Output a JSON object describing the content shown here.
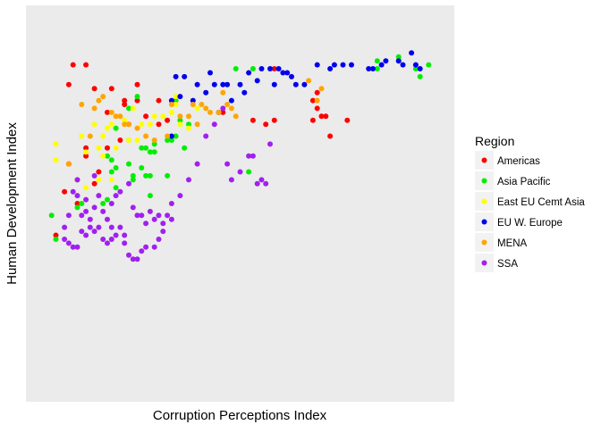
{
  "chart_data": {
    "type": "scatter",
    "title": "",
    "xlabel": "Corruption Perceptions Index",
    "ylabel": "Human Development Index",
    "xlim": [
      0,
      100
    ],
    "ylim": [
      0,
      100
    ],
    "x_ticks_visible": false,
    "y_ticks_visible": false,
    "grid": false,
    "legend": {
      "title": "Region",
      "placement": "right"
    },
    "series": [
      {
        "name": "Americas",
        "color": "#FF0000",
        "points": [
          [
            11,
            85
          ],
          [
            14,
            85
          ],
          [
            10,
            80
          ],
          [
            16,
            79
          ],
          [
            20,
            79
          ],
          [
            23,
            75
          ],
          [
            23,
            76
          ],
          [
            26,
            76
          ],
          [
            26,
            80
          ],
          [
            31,
            76
          ],
          [
            31,
            70
          ],
          [
            28,
            72
          ],
          [
            19,
            73
          ],
          [
            24,
            70
          ],
          [
            22,
            66
          ],
          [
            19,
            64
          ],
          [
            14,
            64
          ],
          [
            14,
            62
          ],
          [
            10,
            60
          ],
          [
            17,
            58
          ],
          [
            16,
            55
          ],
          [
            9,
            53
          ],
          [
            12,
            50
          ],
          [
            7,
            42
          ],
          [
            46,
            73
          ],
          [
            53,
            71
          ],
          [
            56,
            70
          ],
          [
            67,
            71
          ],
          [
            68,
            74
          ],
          [
            68,
            78
          ],
          [
            70,
            72
          ],
          [
            67,
            76
          ],
          [
            71,
            67
          ],
          [
            69,
            72
          ],
          [
            75,
            71
          ],
          [
            58,
            71
          ],
          [
            58,
            84
          ],
          [
            33,
            71
          ]
        ]
      },
      {
        "name": "Asia Pacific",
        "color": "#00EE00",
        "points": [
          [
            49,
            84
          ],
          [
            53,
            84
          ],
          [
            6,
            47
          ],
          [
            7,
            41
          ],
          [
            12,
            49
          ],
          [
            13,
            50
          ],
          [
            18,
            50
          ],
          [
            19,
            51
          ],
          [
            21,
            54
          ],
          [
            21,
            59
          ],
          [
            24,
            60
          ],
          [
            25,
            57
          ],
          [
            28,
            57
          ],
          [
            29,
            63
          ],
          [
            30,
            65
          ],
          [
            33,
            66
          ],
          [
            35,
            67
          ],
          [
            37,
            64
          ],
          [
            38,
            70
          ],
          [
            35,
            76
          ],
          [
            29,
            57
          ],
          [
            33,
            57
          ],
          [
            21,
            69
          ],
          [
            19,
            62
          ],
          [
            20,
            61
          ],
          [
            24,
            74
          ],
          [
            26,
            77
          ],
          [
            27,
            64
          ],
          [
            28,
            64
          ],
          [
            30,
            63
          ],
          [
            34,
            66
          ],
          [
            25,
            56
          ],
          [
            27,
            59
          ],
          [
            20,
            58
          ],
          [
            52,
            58
          ],
          [
            82,
            84
          ],
          [
            82,
            86
          ],
          [
            87,
            86
          ],
          [
            87,
            87
          ],
          [
            91,
            84
          ],
          [
            92,
            82
          ],
          [
            94,
            85
          ],
          [
            29,
            52
          ],
          [
            24,
            66
          ],
          [
            36,
            71
          ]
        ]
      },
      {
        "name": "East EU Cemt Asia",
        "color": "#FFFF00",
        "points": [
          [
            7,
            65
          ],
          [
            7,
            61
          ],
          [
            13,
            67
          ],
          [
            14,
            63
          ],
          [
            16,
            70
          ],
          [
            17,
            64
          ],
          [
            18,
            67
          ],
          [
            19,
            69
          ],
          [
            20,
            70
          ],
          [
            21,
            72
          ],
          [
            23,
            71
          ],
          [
            26,
            66
          ],
          [
            27,
            70
          ],
          [
            29,
            70
          ],
          [
            32,
            72
          ],
          [
            34,
            73
          ],
          [
            35,
            75
          ],
          [
            36,
            70
          ],
          [
            38,
            69
          ],
          [
            39,
            76
          ],
          [
            40,
            74
          ],
          [
            14,
            54
          ],
          [
            17,
            56
          ],
          [
            20,
            56
          ],
          [
            18,
            62
          ],
          [
            21,
            64
          ],
          [
            24,
            66
          ],
          [
            25,
            74
          ],
          [
            30,
            72
          ],
          [
            35,
            77
          ]
        ]
      },
      {
        "name": "EU W. Europe",
        "color": "#0000EE",
        "points": [
          [
            34,
            76
          ],
          [
            36,
            77
          ],
          [
            37,
            82
          ],
          [
            39,
            76
          ],
          [
            40,
            80
          ],
          [
            42,
            78
          ],
          [
            43,
            83
          ],
          [
            44,
            80
          ],
          [
            46,
            80
          ],
          [
            47,
            80
          ],
          [
            48,
            76
          ],
          [
            50,
            80
          ],
          [
            51,
            78
          ],
          [
            52,
            83
          ],
          [
            54,
            81
          ],
          [
            55,
            84
          ],
          [
            57,
            84
          ],
          [
            58,
            80
          ],
          [
            59,
            84
          ],
          [
            60,
            83
          ],
          [
            61,
            83
          ],
          [
            62,
            82
          ],
          [
            63,
            80
          ],
          [
            65,
            80
          ],
          [
            68,
            85
          ],
          [
            71,
            84
          ],
          [
            72,
            85
          ],
          [
            74,
            85
          ],
          [
            76,
            85
          ],
          [
            80,
            84
          ],
          [
            81,
            84
          ],
          [
            83,
            85
          ],
          [
            84,
            86
          ],
          [
            87,
            86
          ],
          [
            88,
            85
          ],
          [
            90,
            88
          ],
          [
            91,
            85
          ],
          [
            92,
            84
          ],
          [
            45,
            73
          ],
          [
            35,
            82
          ],
          [
            34,
            67
          ]
        ]
      },
      {
        "name": "MENA",
        "color": "#FFA500",
        "points": [
          [
            13,
            75
          ],
          [
            10,
            60
          ],
          [
            12,
            56
          ],
          [
            15,
            67
          ],
          [
            16,
            74
          ],
          [
            17,
            76
          ],
          [
            18,
            77
          ],
          [
            20,
            73
          ],
          [
            21,
            72
          ],
          [
            22,
            72
          ],
          [
            23,
            70
          ],
          [
            24,
            70
          ],
          [
            26,
            69
          ],
          [
            28,
            67
          ],
          [
            30,
            66
          ],
          [
            33,
            67
          ],
          [
            34,
            75
          ],
          [
            36,
            72
          ],
          [
            38,
            72
          ],
          [
            39,
            75
          ],
          [
            40,
            70
          ],
          [
            41,
            75
          ],
          [
            42,
            74
          ],
          [
            43,
            73
          ],
          [
            45,
            73
          ],
          [
            46,
            78
          ],
          [
            47,
            75
          ],
          [
            48,
            74
          ],
          [
            49,
            72
          ],
          [
            66,
            81
          ],
          [
            68,
            76
          ],
          [
            69,
            79
          ]
        ]
      },
      {
        "name": "SSA",
        "color": "#A020F0",
        "points": [
          [
            9,
            44
          ],
          [
            10,
            40
          ],
          [
            11,
            39
          ],
          [
            12,
            39
          ],
          [
            13,
            43
          ],
          [
            14,
            42
          ],
          [
            15,
            44
          ],
          [
            16,
            43
          ],
          [
            17,
            44
          ],
          [
            18,
            41
          ],
          [
            19,
            40
          ],
          [
            20,
            41
          ],
          [
            21,
            42
          ],
          [
            22,
            44
          ],
          [
            23,
            40
          ],
          [
            24,
            37
          ],
          [
            25,
            36
          ],
          [
            26,
            36
          ],
          [
            27,
            38
          ],
          [
            28,
            39
          ],
          [
            30,
            39
          ],
          [
            31,
            41
          ],
          [
            32,
            43
          ],
          [
            33,
            47
          ],
          [
            34,
            50
          ],
          [
            36,
            52
          ],
          [
            38,
            56
          ],
          [
            40,
            60
          ],
          [
            42,
            67
          ],
          [
            44,
            70
          ],
          [
            46,
            74
          ],
          [
            47,
            60
          ],
          [
            48,
            56
          ],
          [
            50,
            58
          ],
          [
            52,
            62
          ],
          [
            53,
            62
          ],
          [
            54,
            55
          ],
          [
            55,
            56
          ],
          [
            56,
            55
          ],
          [
            57,
            65
          ],
          [
            12,
            52
          ],
          [
            13,
            47
          ],
          [
            14,
            48
          ],
          [
            15,
            46
          ],
          [
            16,
            49
          ],
          [
            17,
            52
          ],
          [
            18,
            48
          ],
          [
            19,
            46
          ],
          [
            20,
            50
          ],
          [
            21,
            52
          ],
          [
            22,
            53
          ],
          [
            24,
            55
          ],
          [
            25,
            49
          ],
          [
            26,
            47
          ],
          [
            27,
            47
          ],
          [
            29,
            48
          ],
          [
            31,
            47
          ],
          [
            32,
            45
          ],
          [
            34,
            46
          ],
          [
            11,
            53
          ],
          [
            12,
            56
          ],
          [
            14,
            51
          ],
          [
            16,
            57
          ],
          [
            28,
            45
          ],
          [
            30,
            46
          ],
          [
            20,
            44
          ],
          [
            23,
            42
          ],
          [
            9,
            41
          ],
          [
            10,
            47
          ]
        ]
      }
    ]
  }
}
